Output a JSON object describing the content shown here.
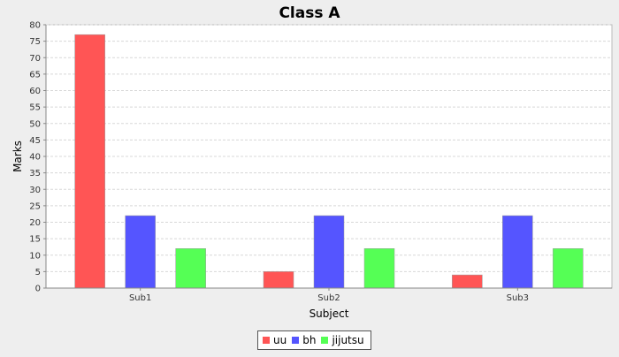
{
  "chart_data": {
    "type": "bar",
    "title": "Class A",
    "xlabel": "Subject",
    "ylabel": "Marks",
    "categories": [
      "Sub1",
      "Sub2",
      "Sub3"
    ],
    "series": [
      {
        "name": "uu",
        "color": "#ff5555",
        "values": [
          77,
          5,
          4
        ]
      },
      {
        "name": "bh",
        "color": "#5555ff",
        "values": [
          22,
          22,
          22
        ]
      },
      {
        "name": "jijutsu",
        "color": "#55ff55",
        "values": [
          12,
          12,
          12
        ]
      }
    ],
    "ylim": [
      0,
      80
    ],
    "yticks": [
      0,
      5,
      10,
      15,
      20,
      25,
      30,
      35,
      40,
      45,
      50,
      55,
      60,
      65,
      70,
      75,
      80
    ],
    "grid": true,
    "legend_position": "bottom"
  }
}
